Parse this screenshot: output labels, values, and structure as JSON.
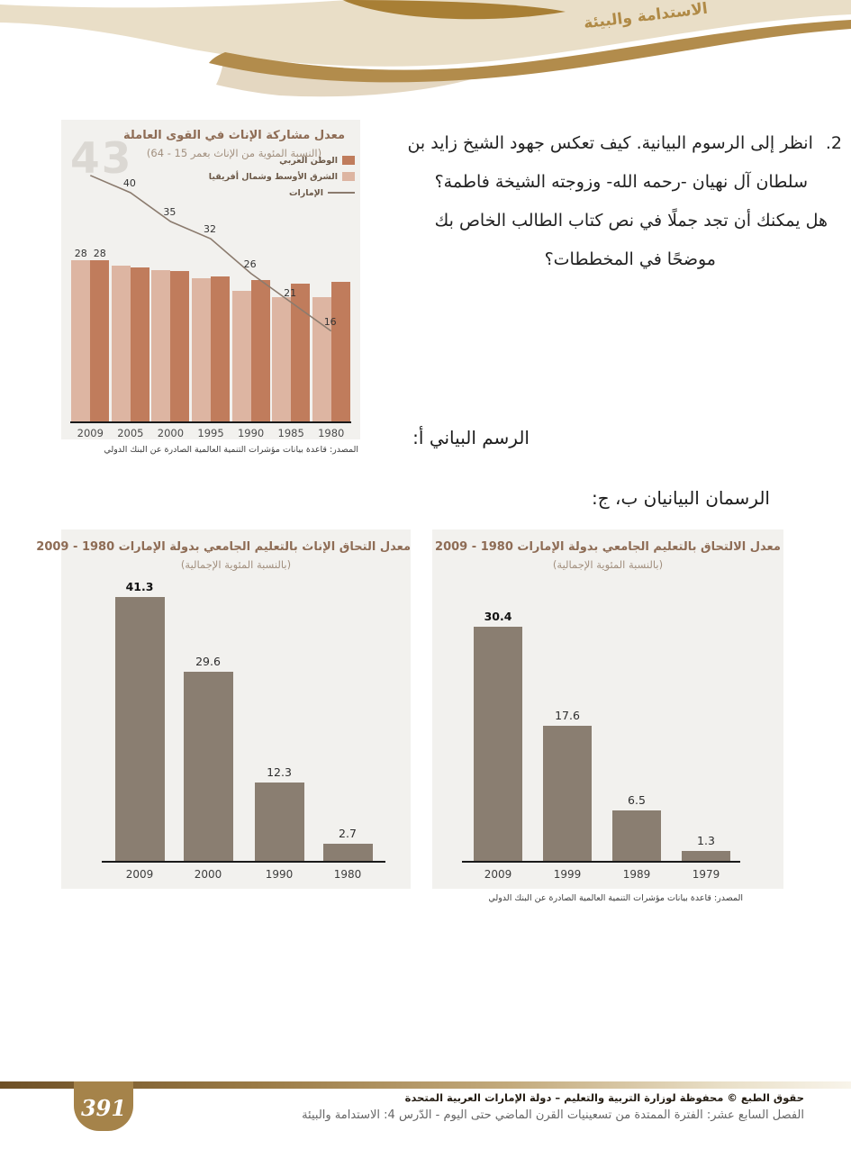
{
  "page": {
    "header_title": "الاستدامة والبيئة",
    "footer": {
      "page_number": "391",
      "copyright": "حقوق الطبع © محفوظة لوزارة التربية والتعليم – دولة الإمارات العربية المتحدة",
      "chapter_line": "الفصل السابع عشر: الفترة الممتدة من تسعينيات القرن الماضي حتى اليوم - الدّرس 4: الاستدامة والبيئة"
    }
  },
  "question": {
    "number": "2.",
    "lines": [
      "انظر إلى الرسوم البيانية. كيف تعكس جهود الشيخ زايد بن",
      "سلطان آل نهيان -رحمه الله- وزوجته الشيخة فاطمة؟",
      "هل يمكنك أن تجد جملًا في نص كتاب الطالب الخاص بك",
      "موضحًا في المخططات؟"
    ]
  },
  "labels": {
    "chart_a_caption": "الرسم البياني أ:",
    "charts_bc_caption": "الرسمان البيانيان ب، ج:"
  },
  "source_note": "المصدر: قاعدة بيانات مؤشرات التنمية العالمية الصادرة عن البنك الدولي",
  "theme": {
    "beige": "#e9dec7",
    "gold": "#b28c4c",
    "gold_dark": "#a87f35",
    "panel_bg": "#f2f1ee",
    "badge_gold": "#a5834a",
    "title_brown": "#8e6c55",
    "subtitle_brown": "#a2907f"
  },
  "chart_data": [
    {
      "id": "female-labor-force-participation",
      "type": "bar+line",
      "title": "معدل مشاركة الإناث في القوى العاملة",
      "subtitle": "(النسبة المئوية من الإناث بعمر 15 - 64)",
      "categories": [
        "2009",
        "2005",
        "2000",
        "1995",
        "1990",
        "1985",
        "1980"
      ],
      "series": [
        {
          "name": "الشرق الأوسط وشمال أفريقيا",
          "type": "bar",
          "color": "#ddb5a2",
          "values": [
            28,
            27.1,
            26.2,
            24.8,
            22.7,
            21.5,
            21.5
          ]
        },
        {
          "name": "الوطن العربي",
          "type": "bar",
          "color": "#c07c5c",
          "values": [
            28,
            26.8,
            26.1,
            25.2,
            24.5,
            23.9,
            24.3
          ]
        },
        {
          "name": "الإمارات",
          "type": "line",
          "color": "#8b7b6e",
          "values": [
            43,
            40,
            35,
            32,
            26,
            21,
            16
          ]
        }
      ],
      "legend": [
        {
          "label": "الوطن العربي",
          "swatch": "#c07c5c"
        },
        {
          "label": "الشرق الأوسط وشمال أفريقيا",
          "swatch": "#ddb5a2"
        },
        {
          "label": "الإمارات",
          "swatch": "line",
          "line_color": "#8b7b6e"
        }
      ],
      "bar_value_labels": [
        "28",
        "28"
      ],
      "line_point_labels": [
        "43",
        "40",
        "35",
        "32",
        "26",
        "21",
        "16"
      ],
      "watermark": "43",
      "ylim": [
        0,
        52
      ],
      "grid": false,
      "legend_position": "top-right"
    },
    {
      "id": "female-university-enrollment-uae",
      "type": "bar",
      "title": "معدل التحاق الإناث بالتعليم الجامعي بدولة الإمارات  1980 - 2009",
      "subtitle": "(بالنسبة المئوية الإجمالية)",
      "categories": [
        "2009",
        "2000",
        "1990",
        "1980"
      ],
      "values": [
        41.3,
        29.6,
        12.3,
        2.7
      ],
      "bar_color": "#8a7e71",
      "ylim": [
        0,
        45
      ],
      "grid": false
    },
    {
      "id": "university-enrollment-uae",
      "type": "bar",
      "title": "معدل الالتحاق بالتعليم الجامعي بدولة الإمارات  1980 - 2009",
      "subtitle": "(بالنسبة المئوية الإجمالية)",
      "categories": [
        "2009",
        "1999",
        "1989",
        "1979"
      ],
      "values": [
        30.4,
        17.6,
        6.5,
        1.3
      ],
      "bar_color": "#8a7e71",
      "ylim": [
        0,
        32
      ],
      "grid": false
    }
  ]
}
